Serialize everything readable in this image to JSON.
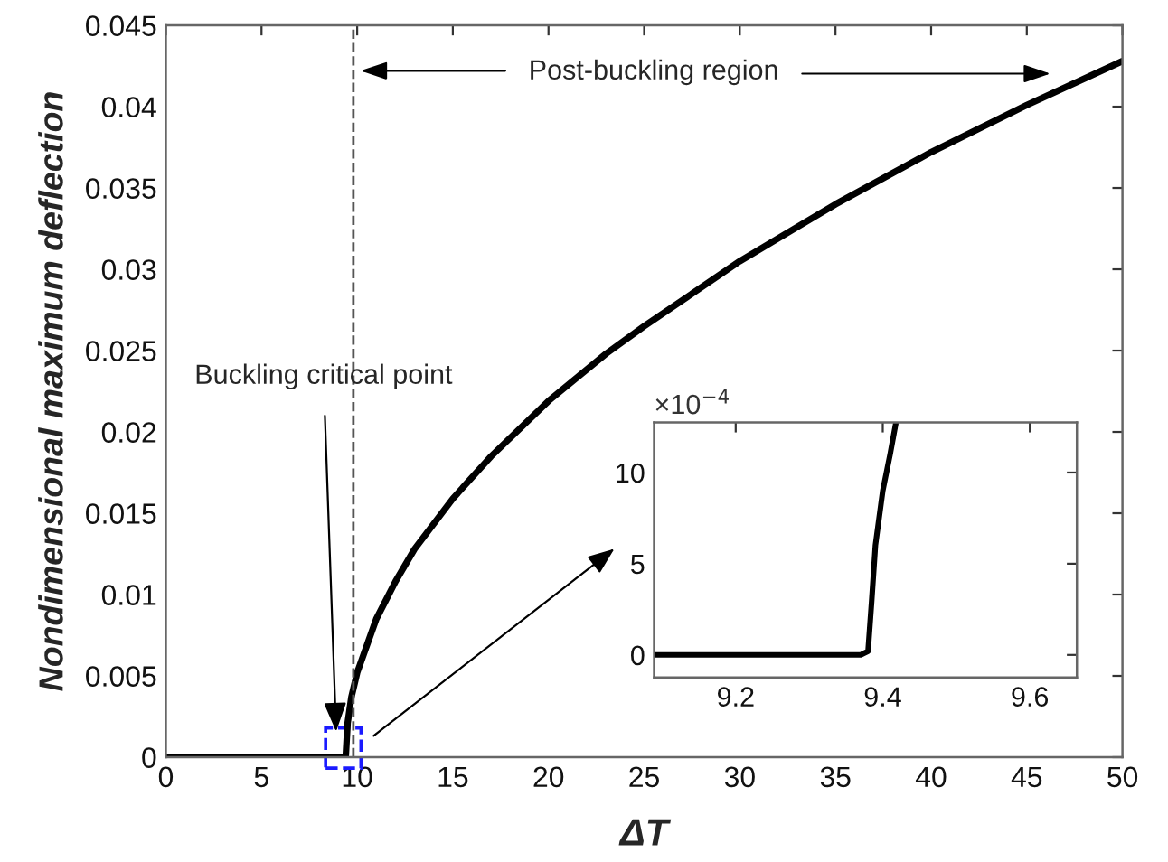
{
  "chart_data": [
    {
      "type": "line",
      "xlabel": "ΔT",
      "ylabel": "Nondimensional maximum deflection",
      "x": [
        0,
        9.4,
        9.5,
        9.7,
        10,
        11,
        12,
        13,
        15,
        17,
        20,
        23,
        25,
        30,
        35,
        40,
        45,
        50
      ],
      "series": [
        {
          "color": "#000000",
          "values": [
            0,
            0,
            0.0021,
            0.0037,
            0.0052,
            0.0085,
            0.0108,
            0.0128,
            0.0159,
            0.0185,
            0.0219,
            0.0248,
            0.0265,
            0.0305,
            0.034,
            0.0372,
            0.0401,
            0.0428
          ]
        }
      ],
      "xlim": [
        0,
        50
      ],
      "ylim": [
        0,
        0.045
      ],
      "xticks": [
        0,
        5,
        10,
        15,
        20,
        25,
        30,
        35,
        40,
        45,
        50
      ],
      "yticks": [
        0,
        0.005,
        0.01,
        0.015,
        0.02,
        0.025,
        0.03,
        0.035,
        0.04,
        0.045
      ],
      "ref_lines": [
        {
          "axis": "x",
          "value": 9.8,
          "line_style": "dashed",
          "color": "#555555"
        }
      ],
      "annotations": [
        "Post-buckling region",
        "Buckling critical point"
      ],
      "grid": false,
      "legend": false
    },
    {
      "type": "line",
      "x": [
        9.089,
        9.37,
        9.38,
        9.385,
        9.39,
        9.4,
        9.41,
        9.418
      ],
      "series": [
        {
          "color": "#000000",
          "values": [
            0,
            0,
            0.2,
            3,
            6,
            9,
            11,
            12.75
          ]
        }
      ],
      "xlim": [
        9.089,
        9.664
      ],
      "ylim": [
        -1.24,
        12.75
      ],
      "xticks": [
        9.2,
        9.4,
        9.6
      ],
      "yticks": [
        0,
        5,
        10
      ],
      "annotations": [
        "×10$^{−4}$"
      ],
      "grid": false,
      "legend": false
    }
  ]
}
